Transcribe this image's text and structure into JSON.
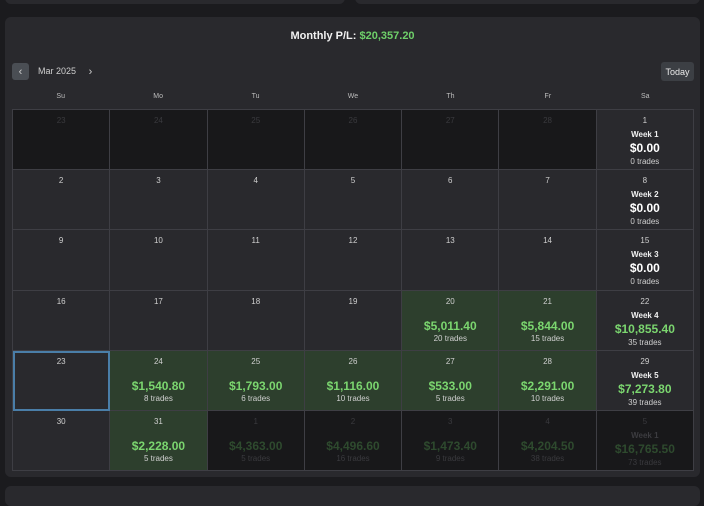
{
  "header": {
    "monthly_label": "Monthly P/L:",
    "monthly_value": "$20,357.20"
  },
  "nav": {
    "prev_icon": "chevron-left-icon",
    "next_icon": "chevron-right-icon",
    "month": "Mar 2025",
    "today_label": "Today"
  },
  "weekdays": [
    "Su",
    "Mo",
    "Tu",
    "We",
    "Th",
    "Fr",
    "Sa"
  ],
  "colors": {
    "accent_green": "#7bd66f",
    "green_cell": "#2d3f2d",
    "selected_outline": "#4a7ea8"
  },
  "weeks": [
    {
      "days": [
        {
          "day": "23",
          "out": true
        },
        {
          "day": "24",
          "out": true
        },
        {
          "day": "25",
          "out": true
        },
        {
          "day": "26",
          "out": true
        },
        {
          "day": "27",
          "out": true
        },
        {
          "day": "28",
          "out": true
        }
      ],
      "summary": {
        "day": "1",
        "label": "Week 1",
        "amount": "$0.00",
        "trades": "0 trades"
      }
    },
    {
      "days": [
        {
          "day": "2"
        },
        {
          "day": "3"
        },
        {
          "day": "4"
        },
        {
          "day": "5"
        },
        {
          "day": "6"
        },
        {
          "day": "7"
        }
      ],
      "summary": {
        "day": "8",
        "label": "Week 2",
        "amount": "$0.00",
        "trades": "0 trades"
      }
    },
    {
      "days": [
        {
          "day": "9"
        },
        {
          "day": "10"
        },
        {
          "day": "11"
        },
        {
          "day": "12"
        },
        {
          "day": "13"
        },
        {
          "day": "14"
        }
      ],
      "summary": {
        "day": "15",
        "label": "Week 3",
        "amount": "$0.00",
        "trades": "0 trades"
      }
    },
    {
      "days": [
        {
          "day": "16"
        },
        {
          "day": "17"
        },
        {
          "day": "18"
        },
        {
          "day": "19"
        },
        {
          "day": "20",
          "amount": "$5,011.40",
          "trades": "20 trades"
        },
        {
          "day": "21",
          "amount": "$5,844.00",
          "trades": "15 trades"
        }
      ],
      "summary": {
        "day": "22",
        "label": "Week 4",
        "amount": "$10,855.40",
        "trades": "35 trades"
      }
    },
    {
      "days": [
        {
          "day": "23",
          "selected": true
        },
        {
          "day": "24",
          "amount": "$1,540.80",
          "trades": "8 trades"
        },
        {
          "day": "25",
          "amount": "$1,793.00",
          "trades": "6 trades"
        },
        {
          "day": "26",
          "amount": "$1,116.00",
          "trades": "10 trades"
        },
        {
          "day": "27",
          "amount": "$533.00",
          "trades": "5 trades"
        },
        {
          "day": "28",
          "amount": "$2,291.00",
          "trades": "10 trades"
        }
      ],
      "summary": {
        "day": "29",
        "label": "Week 5",
        "amount": "$7,273.80",
        "trades": "39 trades"
      }
    },
    {
      "days": [
        {
          "day": "30"
        },
        {
          "day": "31",
          "amount": "$2,228.00",
          "trades": "5 trades"
        },
        {
          "day": "1",
          "out": true,
          "amount": "$4,363.00",
          "trades": "5 trades"
        },
        {
          "day": "2",
          "out": true,
          "amount": "$4,496.60",
          "trades": "16 trades"
        },
        {
          "day": "3",
          "out": true,
          "amount": "$1,473.40",
          "trades": "9 trades"
        },
        {
          "day": "4",
          "out": true,
          "amount": "$4,204.50",
          "trades": "38 trades"
        }
      ],
      "summary": {
        "day": "5",
        "out": true,
        "label": "Week 1",
        "amount": "$16,765.50",
        "trades": "73 trades"
      }
    }
  ]
}
